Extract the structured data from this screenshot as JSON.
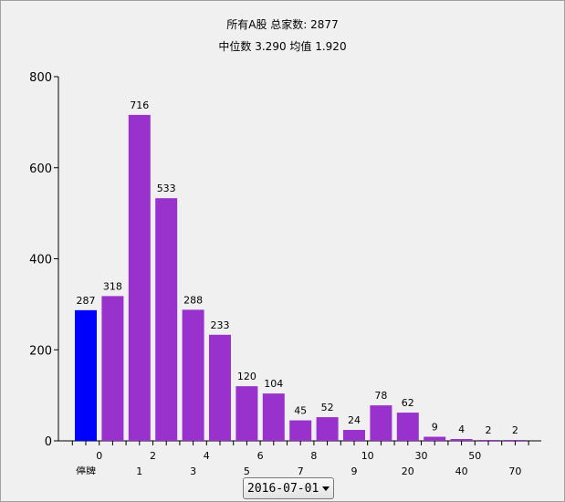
{
  "header": {
    "title_line1": "所有A股 总家数:  2877",
    "title_line2": "中位数 3.290    均值 1.920"
  },
  "date_select": {
    "value": "2016-07-01"
  },
  "chart_data": {
    "type": "bar",
    "title": "所有A股 总家数:  2877",
    "subtitle": "中位数 3.290    均值 1.920",
    "ylim": [
      0,
      800
    ],
    "yticks": [
      0,
      200,
      400,
      600,
      800
    ],
    "bars": [
      {
        "value": 287,
        "color": "#0000ff"
      },
      {
        "value": 318,
        "color": "#9932cc"
      },
      {
        "value": 716,
        "color": "#9932cc"
      },
      {
        "value": 533,
        "color": "#9932cc"
      },
      {
        "value": 288,
        "color": "#9932cc"
      },
      {
        "value": 233,
        "color": "#9932cc"
      },
      {
        "value": 120,
        "color": "#9932cc"
      },
      {
        "value": 104,
        "color": "#9932cc"
      },
      {
        "value": 45,
        "color": "#9932cc"
      },
      {
        "value": 52,
        "color": "#9932cc"
      },
      {
        "value": 24,
        "color": "#9932cc"
      },
      {
        "value": 78,
        "color": "#9932cc"
      },
      {
        "value": 62,
        "color": "#9932cc"
      },
      {
        "value": 9,
        "color": "#9932cc"
      },
      {
        "value": 4,
        "color": "#9932cc"
      },
      {
        "value": 2,
        "color": "#9932cc"
      },
      {
        "value": 2,
        "color": "#9932cc"
      }
    ],
    "boundary_labels_upper": [
      "0",
      "2",
      "4",
      "6",
      "8",
      "10",
      "30",
      "50"
    ],
    "boundary_labels_lower": [
      "停牌",
      "1",
      "3",
      "5",
      "7",
      "9",
      "20",
      "40",
      "70"
    ],
    "grid": false,
    "legend": "none"
  }
}
